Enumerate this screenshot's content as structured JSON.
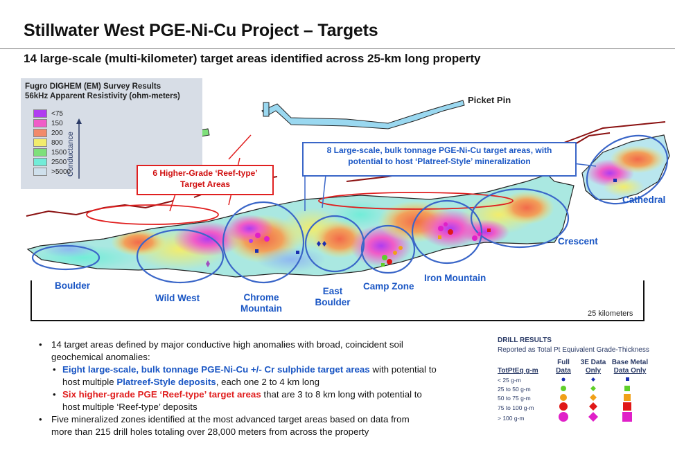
{
  "header": {
    "title": "Stillwater West PGE-Ni-Cu Project – Targets",
    "subtitle": "14 large-scale (multi-kilometer) target areas identified across 25-km long property"
  },
  "legend": {
    "title_line1": "Fugro DIGHEM (EM) Survey Results",
    "title_line2": "56kHz Apparent Resistivity (ohm-meters)",
    "items": [
      {
        "label": "<75",
        "color": "#b03cf0"
      },
      {
        "label": "150",
        "color": "#f05cc8"
      },
      {
        "label": "200",
        "color": "#f28a6a"
      },
      {
        "label": "800",
        "color": "#f2ec6c"
      },
      {
        "label": "1500",
        "color": "#7ee07a"
      },
      {
        "label": "2500",
        "color": "#72ecd8"
      },
      {
        "label": ">5000",
        "color": "#cfe0ec"
      }
    ],
    "axis_label": "Conductance"
  },
  "map": {
    "picket_pin": "Picket Pin",
    "cathedral": "Cathedral",
    "crescent": "Crescent",
    "iron_mountain": "Iron Mountain",
    "camp_zone": "Camp Zone",
    "east_boulder_1": "East",
    "east_boulder_2": "Boulder",
    "chrome_mountain_1": "Chrome",
    "chrome_mountain_2": "Mountain",
    "wild_west": "Wild West",
    "boulder": "Boulder",
    "callout_red_1": "6 Higher-Grade ‘Reef-type’",
    "callout_red_2": "Target Areas",
    "callout_blue_1": "8 Large-scale, bulk tonnage PGE-Ni-Cu target areas, with",
    "callout_blue_2": "potential to host ‘Platreef-Style’ mineralization",
    "scale": "25 kilometers"
  },
  "bullets": {
    "b1_line1": "14 target areas defined by major conductive high anomalies with broad, coincident soil",
    "b1_line2": "geochemical anomalies:",
    "s1_bold": "Eight large-scale, bulk tonnage PGE-Ni-Cu +/- Cr sulphide target areas",
    "s1_rest": " with potential to",
    "s1_line2a": "host multiple ",
    "s1_line2b": "Platreef-Style deposits",
    "s1_line2c": ", each one 2 to 4 km long",
    "s2_bold": "Six higher-grade PGE ‘Reef-type’ target areas",
    "s2_rest": " that are 3 to 8 km long with potential to",
    "s2_line2": "host multiple ‘Reef-type’ deposits",
    "b2_line1": "Five mineralized zones identified at the most advanced target areas based on data from",
    "b2_line2": "more than 215 drill holes totaling over 28,000 meters from across the property"
  },
  "drill_results": {
    "title": "DRILL RESULTS",
    "subtitle": "Reported as Total Pt Equivalent Grade-Thickness",
    "col0": "TotPtEq g-m",
    "col1_a": "Full",
    "col1_b": "Data",
    "col2_a": "3E Data",
    "col2_b": "Only",
    "col3_a": "Base Metal",
    "col3_b": "Data Only",
    "rows": [
      {
        "label": "< 25 g-m",
        "color": "#1a2fb0"
      },
      {
        "label": "25 to 50 g-m",
        "color": "#5fcf2a"
      },
      {
        "label": "50 to 75 g-m",
        "color": "#f0a018"
      },
      {
        "label": "75 to 100 g-m",
        "color": "#e01818"
      },
      {
        "label": "> 100 g-m",
        "color": "#e020c8"
      }
    ]
  }
}
